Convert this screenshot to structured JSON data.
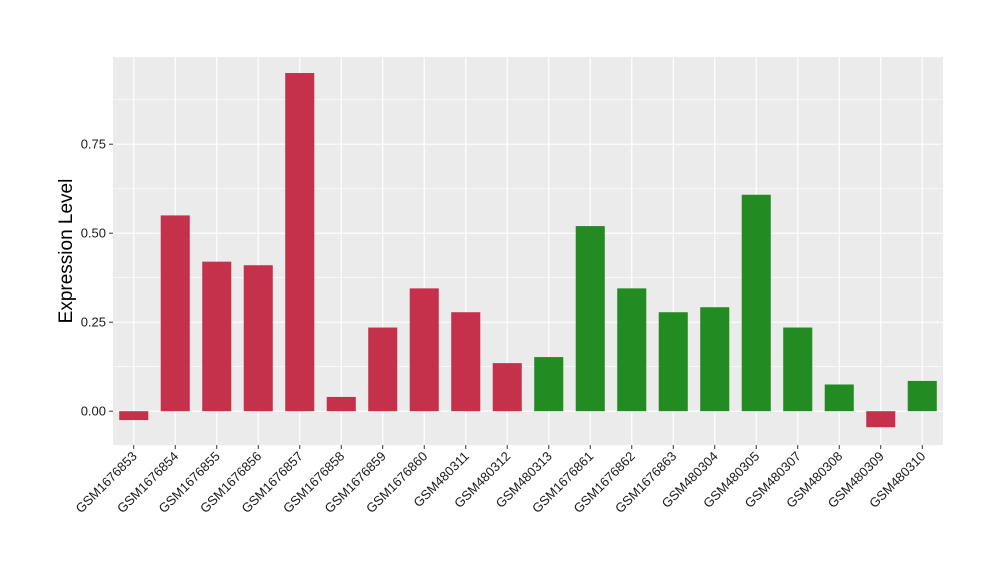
{
  "chart_data": {
    "type": "bar",
    "title": "",
    "xlabel": "",
    "ylabel": "Expression Level",
    "ylim": [
      -0.095,
      0.995
    ],
    "yticks": [
      0.0,
      0.25,
      0.5,
      0.75
    ],
    "ytick_labels": [
      "0.00",
      "0.25",
      "0.50",
      "0.75"
    ],
    "grid": true,
    "legend": "none",
    "categories": [
      "GSM1676853",
      "GSM1676854",
      "GSM1676855",
      "GSM1676856",
      "GSM1676857",
      "GSM1676858",
      "GSM1676859",
      "GSM1676860",
      "GSM480311",
      "GSM480312",
      "GSM480313",
      "GSM1676861",
      "GSM1676862",
      "GSM1676863",
      "GSM480304",
      "GSM480305",
      "GSM480307",
      "GSM480308",
      "GSM480309",
      "GSM480310"
    ],
    "values": [
      -0.025,
      0.55,
      0.42,
      0.41,
      0.95,
      0.04,
      0.235,
      0.345,
      0.278,
      0.135,
      0.152,
      0.52,
      0.345,
      0.278,
      0.292,
      0.608,
      0.235,
      0.075,
      -0.045,
      0.085
    ],
    "bar_colors": [
      "#C5314B",
      "#C5314B",
      "#C5314B",
      "#C5314B",
      "#C5314B",
      "#C5314B",
      "#C5314B",
      "#C5314B",
      "#C5314B",
      "#C5314B",
      "#228B22",
      "#228B22",
      "#228B22",
      "#228B22",
      "#228B22",
      "#228B22",
      "#228B22",
      "#228B22",
      "#C5314B",
      "#228B22"
    ]
  },
  "colors": {
    "panel_background": "#EBEBEB",
    "grid_line": "#FFFFFF",
    "group_red": "#C5314B",
    "group_green": "#228B22"
  }
}
